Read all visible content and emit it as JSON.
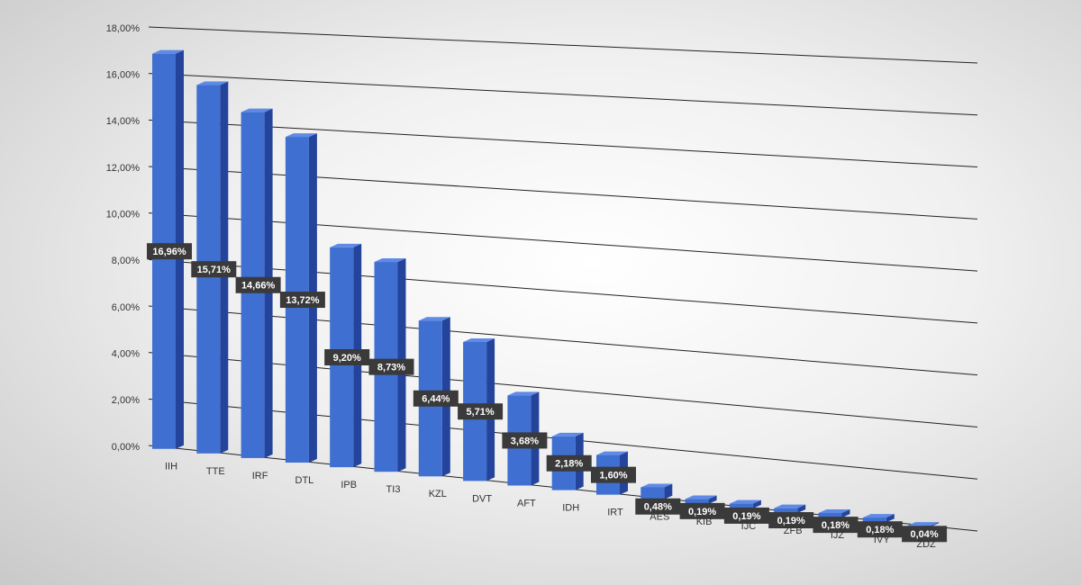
{
  "chart_data": {
    "type": "bar3d",
    "categories": [
      "IIH",
      "TTE",
      "IRF",
      "DTL",
      "IPB",
      "TI3",
      "KZL",
      "DVT",
      "AFT",
      "IDH",
      "IRT",
      "AES",
      "KIB",
      "IJC",
      "ZFB",
      "IJZ",
      "IVY",
      "ZDZ"
    ],
    "values": [
      16.96,
      15.71,
      14.66,
      13.72,
      9.2,
      8.73,
      6.44,
      5.71,
      3.68,
      2.18,
      1.6,
      0.48,
      0.19,
      0.19,
      0.19,
      0.18,
      0.18,
      0.04
    ],
    "value_labels": [
      "16,96%",
      "15,71%",
      "14,66%",
      "13,72%",
      "9,20%",
      "8,73%",
      "6,44%",
      "5,71%",
      "3,68%",
      "2,18%",
      "1,60%",
      "0,48%",
      "0,19%",
      "0,19%",
      "0,19%",
      "0,18%",
      "0,18%",
      "0,04%"
    ],
    "color": "#3f6fd1",
    "ylim": [
      0,
      18
    ],
    "yticks": [
      {
        "value": 0,
        "label": "0,00%"
      },
      {
        "value": 2,
        "label": "2,00%"
      },
      {
        "value": 4,
        "label": "4,00%"
      },
      {
        "value": 6,
        "label": "6,00%"
      },
      {
        "value": 8,
        "label": "8,00%"
      },
      {
        "value": 10,
        "label": "10,00%"
      },
      {
        "value": 12,
        "label": "12,00%"
      },
      {
        "value": 14,
        "label": "14,00%"
      },
      {
        "value": 16,
        "label": "16,00%"
      },
      {
        "value": 18,
        "label": "18,00%"
      }
    ],
    "grid": true
  }
}
